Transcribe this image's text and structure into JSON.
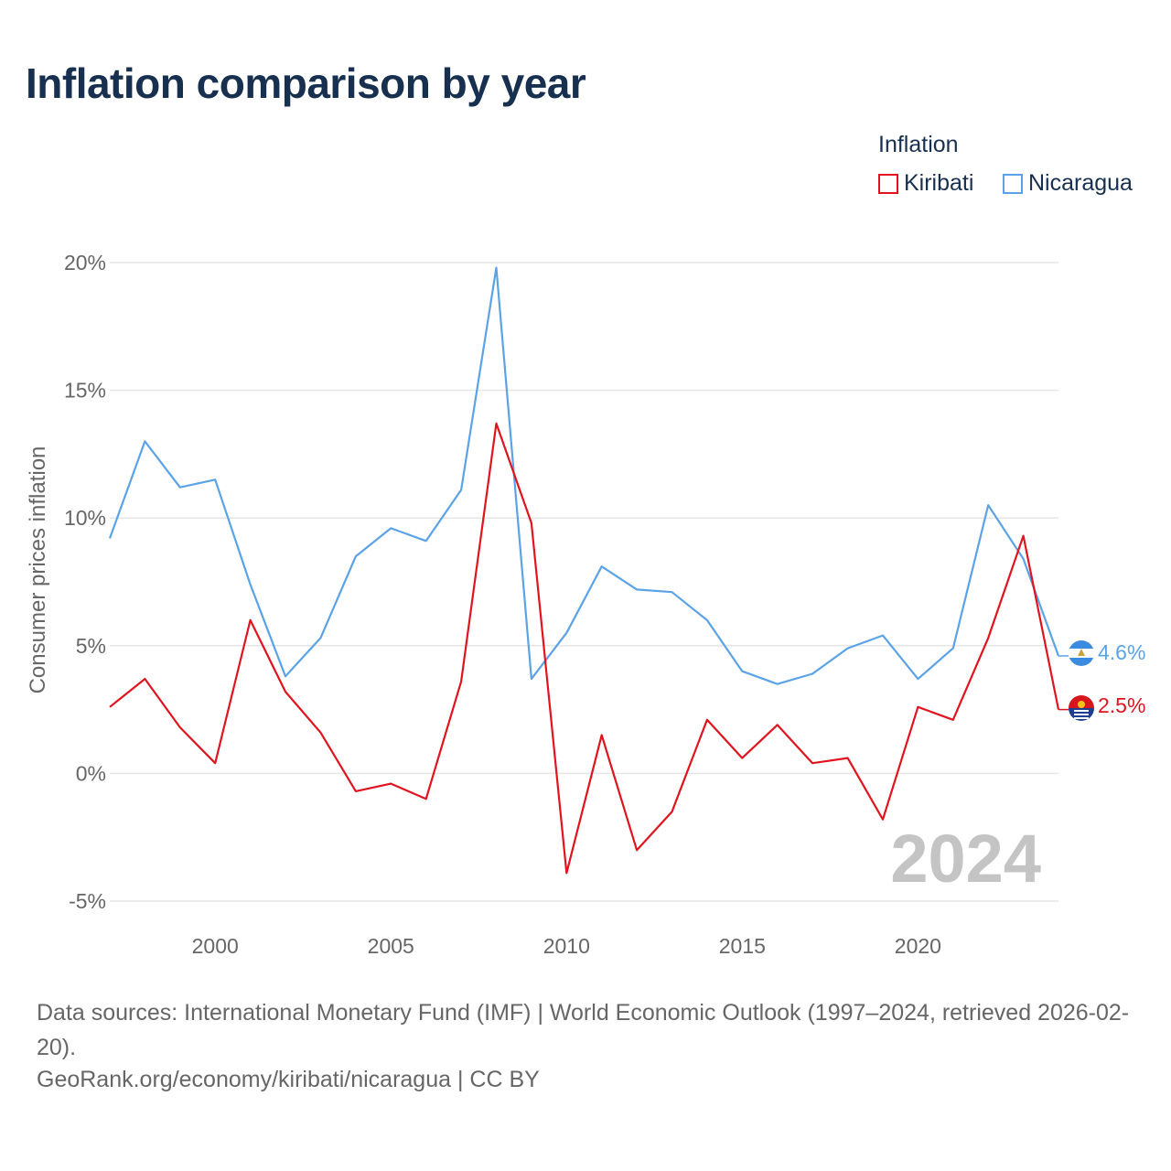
{
  "title": "Inflation comparison by year",
  "legend": {
    "title": "Inflation",
    "items": [
      {
        "label": "Kiribati",
        "color": "#e0141e"
      },
      {
        "label": "Nicaragua",
        "color": "#5ba3e6"
      }
    ]
  },
  "chart_data": {
    "type": "line",
    "title": "Inflation comparison by year",
    "ylabel": "Consumer prices inflation",
    "xlabel": "",
    "x": [
      1997,
      1998,
      1999,
      2000,
      2001,
      2002,
      2003,
      2004,
      2005,
      2006,
      2007,
      2008,
      2009,
      2010,
      2011,
      2012,
      2013,
      2014,
      2015,
      2016,
      2017,
      2018,
      2019,
      2020,
      2021,
      2022,
      2023,
      2024
    ],
    "xlim": [
      1997,
      2024
    ],
    "ylim": [
      -5,
      20
    ],
    "y_ticks": [
      -5,
      0,
      5,
      10,
      15,
      20
    ],
    "y_tick_labels": [
      "-5%",
      "0%",
      "5%",
      "10%",
      "15%",
      "20%"
    ],
    "x_ticks": [
      2000,
      2005,
      2010,
      2015,
      2020
    ],
    "x_tick_labels": [
      "2000",
      "2005",
      "2010",
      "2015",
      "2020"
    ],
    "grid": true,
    "series": [
      {
        "name": "Kiribati",
        "color": "#e0141e",
        "values": [
          2.6,
          3.7,
          1.8,
          0.4,
          6.0,
          3.2,
          1.6,
          -0.7,
          -0.4,
          -1.0,
          3.6,
          13.7,
          9.8,
          -3.9,
          1.5,
          -3.0,
          -1.5,
          2.1,
          0.6,
          1.9,
          0.4,
          0.6,
          -1.8,
          2.6,
          2.1,
          5.3,
          9.3,
          2.5
        ]
      },
      {
        "name": "Nicaragua",
        "color": "#5ba3e6",
        "values": [
          9.2,
          13.0,
          11.2,
          11.5,
          7.4,
          3.8,
          5.3,
          8.5,
          9.6,
          9.1,
          11.1,
          19.8,
          3.7,
          5.5,
          8.1,
          7.2,
          7.1,
          6.0,
          4.0,
          3.5,
          3.9,
          4.9,
          5.4,
          3.7,
          4.9,
          10.5,
          8.4,
          4.6
        ]
      }
    ],
    "end_labels": {
      "nicaragua": "4.6%",
      "kiribati": "2.5%"
    },
    "year_watermark": "2024"
  },
  "footer": {
    "source_line": "Data sources: International Monetary Fund (IMF) | World Economic Outlook (1997–2024, retrieved 2026-02-20).",
    "url_line": "GeoRank.org/economy/kiribati/nicaragua | CC BY"
  }
}
